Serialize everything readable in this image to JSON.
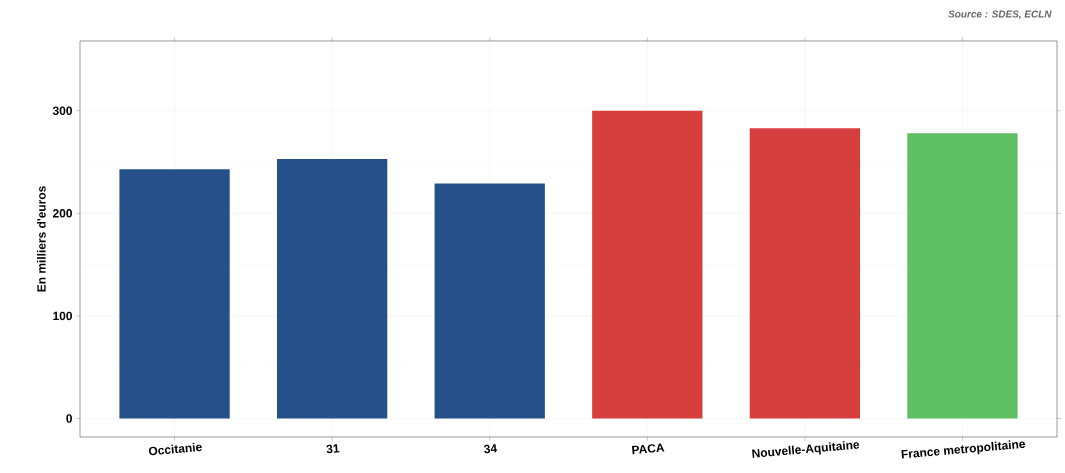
{
  "chart_data": {
    "type": "bar",
    "ylabel": "En milliers d'euros",
    "categories": [
      "Occitanie",
      "31",
      "34",
      "PACA",
      "Nouvelle-Aquitaine",
      "France metropolitaine"
    ],
    "values": [
      243,
      253,
      229,
      300,
      283,
      278
    ],
    "colors": [
      "#26508a",
      "#26508a",
      "#26508a",
      "#d73f3f",
      "#d73f3f",
      "#5fbf63"
    ],
    "ylim": [
      -18,
      368
    ],
    "yticks": [
      0,
      100,
      200,
      300
    ],
    "grid": true,
    "annotations": [
      "Source : SDES, ECLN"
    ]
  }
}
